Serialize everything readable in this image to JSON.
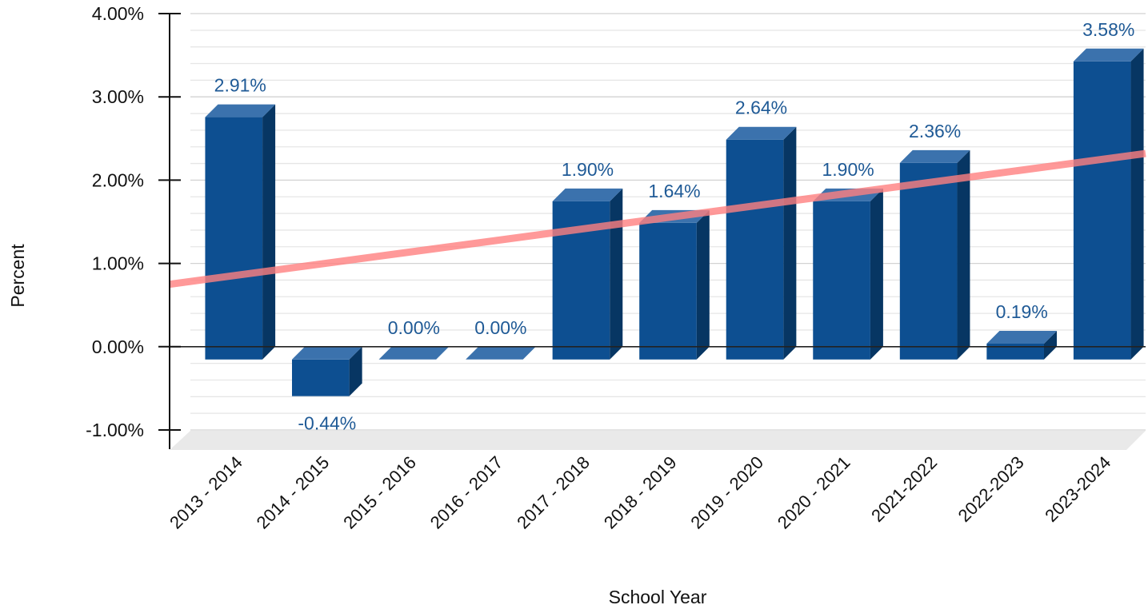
{
  "chart_data": {
    "type": "bar",
    "title": "",
    "xlabel": "School Year",
    "ylabel": "Percent",
    "ylim": [
      -1.0,
      4.0
    ],
    "yticks": [
      -1.0,
      0.0,
      1.0,
      2.0,
      3.0,
      4.0
    ],
    "ytick_labels": [
      "-1.00%",
      "0.00%",
      "1.00%",
      "2.00%",
      "3.00%",
      "4.00%"
    ],
    "grid": true,
    "three_d": true,
    "categories": [
      "2013 - 2014",
      "2014 - 2015",
      "2015 - 2016",
      "2016 - 2017",
      "2017 - 2018",
      "2018 - 2019",
      "2019 - 2020",
      "2020 - 2021",
      "2021-2022",
      "2022-2023",
      "2023-2024"
    ],
    "values": [
      2.91,
      -0.44,
      0.0,
      0.0,
      1.9,
      1.64,
      2.64,
      1.9,
      2.36,
      0.19,
      3.58
    ],
    "data_labels": [
      "2.91%",
      "-0.44%",
      "0.00%",
      "0.00%",
      "1.90%",
      "1.64%",
      "2.64%",
      "1.90%",
      "2.36%",
      "0.19%",
      "3.58%"
    ],
    "trendline": {
      "type": "linear",
      "start": 0.75,
      "end": 2.32
    },
    "colors": {
      "bar_front": "#0d4f91",
      "bar_top": "#3b72ad",
      "bar_side": "#073663",
      "trendline": "#ff8080",
      "data_label": "#1f5a96",
      "grid": "#dcdcdc",
      "floor": "#e9e9e9"
    }
  }
}
